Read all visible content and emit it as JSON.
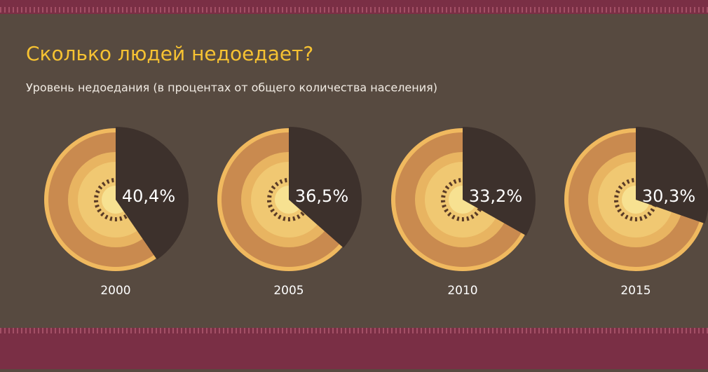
{
  "chart_data": {
    "type": "pie",
    "title": "Сколько людей недоедает?",
    "subtitle": "Уровень недоедания (в процентах от общего количества населения)",
    "categories": [
      "2000",
      "2005",
      "2010",
      "2015"
    ],
    "values": [
      40.4,
      36.5,
      33.2,
      30.3
    ],
    "value_labels": [
      "40,4%",
      "36,5%",
      "33,2%",
      "30,3%"
    ],
    "color": "#3d312c"
  }
}
